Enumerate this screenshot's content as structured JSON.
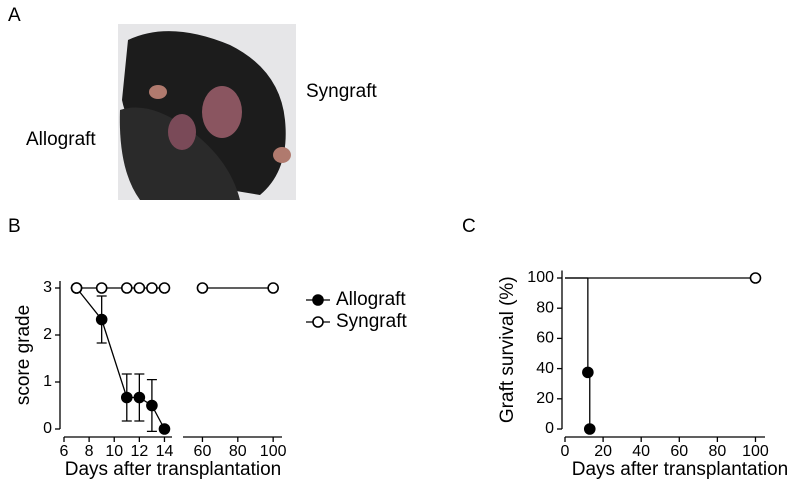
{
  "figure": {
    "panel_labels": [
      "A",
      "B",
      "C"
    ],
    "photo_labels": [
      "Allograft",
      "Syngraft"
    ]
  },
  "chart_data": [
    {
      "type": "line",
      "ylabel": "score grade",
      "xlabel": "Days after transplantation",
      "xlim_segments": [
        [
          6,
          14.6
        ],
        [
          49,
          105
        ]
      ],
      "xticks": [
        6,
        8,
        10,
        12,
        14,
        60,
        80,
        100
      ],
      "ylim": [
        0,
        3.15
      ],
      "yticks": [
        0,
        1,
        2,
        3
      ],
      "legend": "right",
      "series": [
        {
          "name": "Allograft",
          "color": "#000000",
          "marker": "filled",
          "x": [
            7,
            9,
            11,
            12,
            13,
            14
          ],
          "values": [
            3,
            2.33,
            0.67,
            0.67,
            0.5,
            0
          ],
          "errors": [
            0,
            0.5,
            0.5,
            0.5,
            0.55,
            0
          ]
        },
        {
          "name": "Syngraft",
          "color": "#000000",
          "marker": "open",
          "x": [
            7,
            9,
            11,
            12,
            13,
            14,
            60,
            100
          ],
          "values": [
            3,
            3,
            3,
            3,
            3,
            3,
            3,
            3
          ]
        }
      ]
    },
    {
      "type": "step",
      "ylabel": "Graft survival (%)",
      "xlabel": "Days after transplantation",
      "xlim": [
        0,
        105
      ],
      "xticks": [
        0,
        20,
        40,
        60,
        80,
        100
      ],
      "ylim": [
        0,
        105
      ],
      "yticks": [
        0,
        20,
        40,
        60,
        80,
        100
      ],
      "series": [
        {
          "color": "#000000",
          "marker": "filled",
          "x": [
            0,
            12,
            13
          ],
          "values": [
            100,
            37.5,
            0
          ]
        },
        {
          "color": "#000000",
          "marker": "open",
          "x": [
            0,
            100
          ],
          "values": [
            100,
            100
          ]
        }
      ]
    }
  ]
}
